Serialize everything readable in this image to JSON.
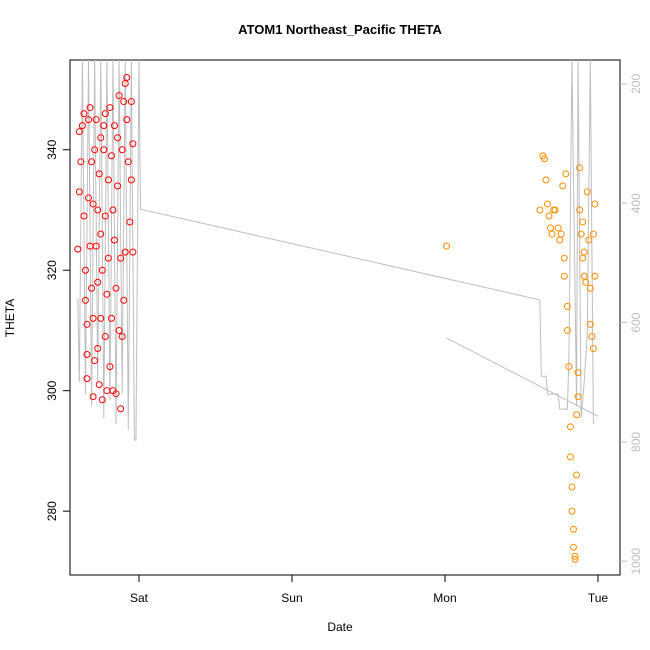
{
  "chart_data": {
    "type": "scatter",
    "title": "ATOM1 Northeast_Pacific THETA",
    "x_label": "Date",
    "y_label": "THETA",
    "xlim": [
      -0.451,
      3.144
    ],
    "xticks": [
      {
        "value": 0,
        "label": "Sat"
      },
      {
        "value": 1,
        "label": "Sun"
      },
      {
        "value": 2,
        "label": "Mon"
      },
      {
        "value": 3,
        "label": "Tue"
      }
    ],
    "ylim": [
      269.4,
      354.9
    ],
    "yticks": [
      280,
      300,
      320,
      340
    ],
    "y2lim": [
      1023,
      160
    ],
    "y2ticks": [
      200,
      400,
      600,
      800,
      1000
    ],
    "y2_color": "#bebebe",
    "series": [
      {
        "type": "line",
        "axis": "y2",
        "color": "#bebebe",
        "x": [
          -0.4,
          -0.39,
          -0.37,
          -0.35,
          -0.33,
          -0.31,
          -0.29,
          -0.27,
          -0.25,
          -0.23,
          -0.21,
          -0.19,
          -0.17,
          -0.15,
          -0.13,
          -0.11,
          -0.09,
          -0.07,
          -0.05,
          -0.03,
          -0.02,
          0.0,
          0.01,
          2.62,
          2.63,
          2.66,
          2.67,
          2.74,
          2.75,
          2.8,
          2.81,
          2.83,
          2.86,
          2.87,
          2.89,
          2.91,
          2.93,
          2.95,
          2.97,
          2.5,
          2.01,
          3.0
        ],
        "values": [
          560,
          700,
          160,
          720,
          160,
          740,
          160,
          700,
          160,
          760,
          160,
          730,
          160,
          770,
          160,
          720,
          160,
          780,
          160,
          797,
          797,
          160,
          410,
          562,
          690,
          690,
          720,
          720,
          745,
          745,
          660,
          160,
          740,
          160,
          760,
          700,
          620,
          160,
          770,
          null,
          626,
          757
        ]
      },
      {
        "type": "scatter",
        "color": "#ff0000",
        "x": [
          -0.4,
          -0.39,
          -0.39,
          -0.38,
          -0.37,
          -0.36,
          -0.36,
          -0.35,
          -0.35,
          -0.34,
          -0.34,
          -0.34,
          -0.33,
          -0.33,
          -0.32,
          -0.32,
          -0.31,
          -0.31,
          -0.3,
          -0.3,
          -0.3,
          -0.29,
          -0.29,
          -0.28,
          -0.28,
          -0.27,
          -0.27,
          -0.27,
          -0.26,
          -0.26,
          -0.25,
          -0.25,
          -0.25,
          -0.24,
          -0.24,
          -0.23,
          -0.23,
          -0.22,
          -0.22,
          -0.22,
          -0.21,
          -0.21,
          -0.2,
          -0.2,
          -0.19,
          -0.19,
          -0.18,
          -0.18,
          -0.17,
          -0.17,
          -0.16,
          -0.16,
          -0.15,
          -0.15,
          -0.14,
          -0.14,
          -0.13,
          -0.13,
          -0.12,
          -0.12,
          -0.11,
          -0.11,
          -0.1,
          -0.1,
          -0.09,
          -0.09,
          -0.08,
          -0.08,
          -0.07,
          -0.06,
          -0.05,
          -0.05,
          -0.04,
          -0.04
        ],
        "values": [
          323.5,
          333,
          343,
          338,
          344,
          346,
          329,
          320,
          315,
          311,
          302,
          306,
          332,
          345,
          347,
          324,
          338,
          317,
          331,
          299,
          312,
          305,
          340,
          324,
          345,
          318,
          307,
          330,
          301,
          336,
          342,
          326,
          312,
          298.5,
          320,
          344,
          340,
          346,
          329,
          309,
          316,
          300,
          335,
          322,
          347,
          304,
          339,
          312,
          330,
          300,
          344,
          325,
          317,
          299.5,
          342,
          334,
          310,
          349,
          322,
          297,
          340,
          309,
          348,
          315,
          351,
          323,
          352,
          345,
          338,
          328,
          335,
          348,
          341,
          323
        ]
      },
      {
        "type": "scatter",
        "color": "#ff8c00",
        "x": [
          2.01,
          2.62,
          2.64,
          2.65,
          2.66,
          2.67,
          2.68,
          2.69,
          2.7,
          2.71,
          2.72,
          2.74,
          2.75,
          2.76,
          2.77,
          2.78,
          2.78,
          2.79,
          2.8,
          2.8,
          2.81,
          2.82,
          2.82,
          2.83,
          2.83,
          2.84,
          2.84,
          2.85,
          2.85,
          2.86,
          2.86,
          2.87,
          2.87,
          2.88,
          2.88,
          2.89,
          2.9,
          2.9,
          2.91,
          2.91,
          2.92,
          2.93,
          2.94,
          2.95,
          2.95,
          2.96,
          2.97,
          2.97,
          2.98,
          2.98
        ],
        "values": [
          324,
          330,
          339,
          338.5,
          335,
          331,
          329,
          327,
          326,
          330,
          330,
          327,
          325,
          326,
          334,
          322,
          319,
          336,
          314,
          310,
          304,
          294,
          289,
          284,
          280,
          277,
          274,
          272,
          272.5,
          286,
          296,
          299,
          303,
          337,
          330,
          326,
          328,
          322,
          319,
          323,
          318,
          333,
          325,
          317,
          311,
          309,
          307,
          326,
          331,
          319
        ]
      }
    ]
  }
}
